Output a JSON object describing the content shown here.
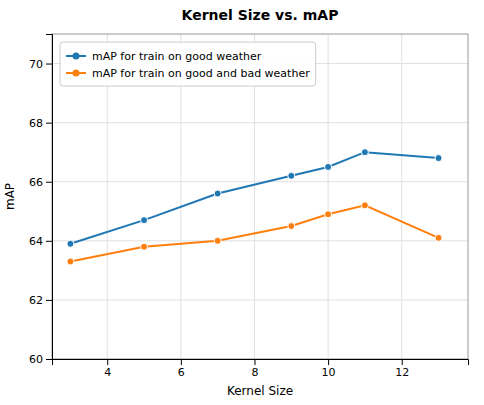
{
  "chart_data": {
    "type": "line",
    "title": "Kernel Size vs. mAP",
    "x_label": "Kernel Size",
    "y_label": "mAP",
    "x": [
      3,
      5,
      7,
      9,
      10,
      11,
      13
    ],
    "series": [
      {
        "name": "mAP for train on good weather",
        "color": "#1f77b4",
        "marker": "o",
        "values": [
          63.9,
          64.7,
          65.6,
          66.2,
          66.5,
          67.0,
          66.8
        ]
      },
      {
        "name": "mAP for train on good and bad weather",
        "color": "#ff7f0e",
        "marker": "o",
        "values": [
          63.3,
          63.8,
          64.0,
          64.5,
          64.9,
          65.2,
          64.1
        ]
      }
    ],
    "xlim": [
      2.5,
      13.8
    ],
    "ylim": [
      60,
      71
    ],
    "xticks": [
      4,
      6,
      8,
      10,
      12
    ],
    "yticks": [
      60,
      62,
      64,
      66,
      68,
      70
    ],
    "grid": true,
    "legend": "upper left"
  }
}
